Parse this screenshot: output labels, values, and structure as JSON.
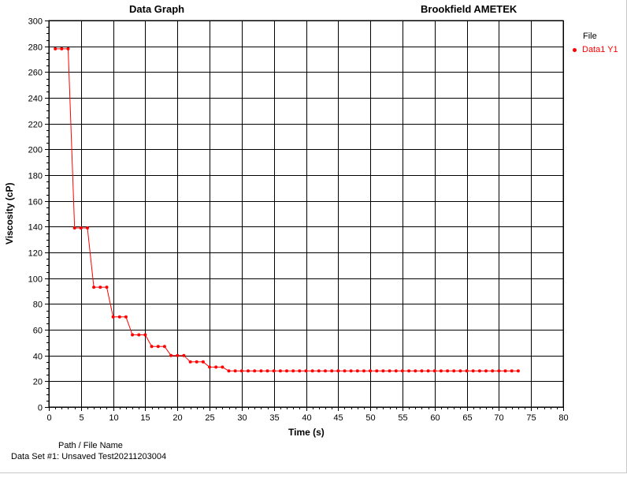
{
  "window": {
    "bg": "#ffffff"
  },
  "header": {
    "left_title": "Data Graph",
    "right_title": "Brookfield AMETEK"
  },
  "legend": {
    "title": "File",
    "series_label": "Data1 Y1",
    "series_color": "#ff0000"
  },
  "footer": {
    "path_label": "Path / File Name",
    "dataset_label": "Data Set #1: Unsaved Test20211203004"
  },
  "chart_data": {
    "type": "line",
    "title": "Data Graph",
    "xlabel": "Time (s)",
    "ylabel": "Viscosity (cP)",
    "xlim": [
      0,
      80
    ],
    "ylim": [
      0,
      300
    ],
    "x_ticks": [
      0,
      5,
      10,
      15,
      20,
      25,
      30,
      35,
      40,
      45,
      50,
      55,
      60,
      65,
      70,
      75,
      80
    ],
    "y_ticks": [
      0,
      20,
      40,
      60,
      80,
      100,
      120,
      140,
      160,
      180,
      200,
      220,
      240,
      260,
      280,
      300
    ],
    "grid": true,
    "legend_position": "top-right",
    "series": [
      {
        "name": "Data1 Y1",
        "color": "#ff0000",
        "x": [
          1,
          2,
          3,
          4,
          5,
          6,
          7,
          8,
          9,
          10,
          11,
          12,
          13,
          14,
          15,
          16,
          17,
          18,
          19,
          20,
          21,
          22,
          23,
          24,
          25,
          26,
          27,
          28,
          29,
          30,
          31,
          32,
          33,
          34,
          35,
          36,
          37,
          38,
          39,
          40,
          41,
          42,
          43,
          44,
          45,
          46,
          47,
          48,
          49,
          50,
          51,
          52,
          53,
          54,
          55,
          56,
          57,
          58,
          59,
          60,
          61,
          62,
          63,
          64,
          65,
          66,
          67,
          68,
          69,
          70,
          71,
          72,
          73
        ],
        "y": [
          278,
          278,
          278,
          139,
          139,
          139,
          93,
          93,
          93,
          70,
          70,
          70,
          56,
          56,
          56,
          47,
          47,
          47,
          40,
          40,
          40,
          35,
          35,
          35,
          31,
          31,
          31,
          28,
          28,
          28,
          28,
          28,
          28,
          28,
          28,
          28,
          28,
          28,
          28,
          28,
          28,
          28,
          28,
          28,
          28,
          28,
          28,
          28,
          28,
          28,
          28,
          28,
          28,
          28,
          28,
          28,
          28,
          28,
          28,
          28,
          28,
          28,
          28,
          28,
          28,
          28,
          28,
          28,
          28,
          28,
          28,
          28,
          28
        ]
      }
    ]
  }
}
